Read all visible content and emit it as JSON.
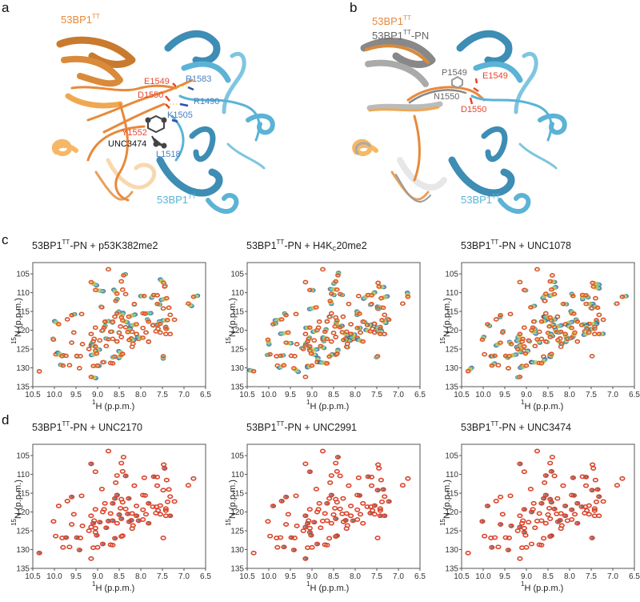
{
  "panels": {
    "a": {
      "letter": "a",
      "labels": {
        "orange_protein": "53BP1",
        "orange_sup": "TT",
        "blue_protein": "53BP1",
        "blue_sup": "TT",
        "E1549": "E1549",
        "D1550": "D1550",
        "Y1552": "Y1552",
        "R1583": "R1583",
        "R1490": "R1490",
        "K1505": "K1505",
        "L1518": "L1518",
        "ligand": "UNC3474"
      }
    },
    "b": {
      "letter": "b",
      "labels": {
        "orange_protein": "53BP1",
        "orange_sup": "TT",
        "gray_protein": "53BP1",
        "gray_sup": "TT",
        "gray_suffix": "-PN",
        "blue_protein": "53BP1",
        "blue_sup": "TT",
        "P1549": "P1549",
        "N1550": "N1550",
        "E1549": "E1549",
        "D1550": "D1550"
      }
    },
    "c": {
      "letter": "c"
    },
    "d": {
      "letter": "d"
    }
  },
  "colors": {
    "orange": "#e8893a",
    "light_orange": "#f5b867",
    "blue": "#5bb3d6",
    "dark_blue": "#3d8db5",
    "label_red": "#e8452f",
    "label_blue": "#4a7fc1",
    "gray": "#8a8a8a",
    "peak_red": "#e0502e",
    "peak_dark": "#3a4a5a"
  },
  "axis": {
    "x_label_sup": "1",
    "x_label": "H (p.p.m.)",
    "y_label_sup": "15",
    "y_label": "N (p.p.m.)",
    "x_ticks": [
      "10.5",
      "10.0",
      "9.5",
      "9.0",
      "8.5",
      "8.0",
      "7.5",
      "7.0",
      "6.5"
    ],
    "y_ticks": [
      "105",
      "110",
      "115",
      "120",
      "125",
      "130",
      "135"
    ]
  },
  "chart_data": [
    {
      "type": "scatter",
      "panel": "c",
      "title_base": "53BP1",
      "title_sup": "TT",
      "title_rest": "-PN + p53K382me2",
      "xlabel": "1H (p.p.m.)",
      "ylabel": "15N (p.p.m.)",
      "xlim": [
        10.5,
        6.5
      ],
      "ylim": [
        135,
        102
      ],
      "titration": "rainbow",
      "grid": false
    },
    {
      "type": "scatter",
      "panel": "c",
      "title_base": "53BP1",
      "title_sup": "TT",
      "title_rest": "-PN + H4K",
      "title_sub": "C",
      "title_end": "20me2",
      "xlabel": "1H (p.p.m.)",
      "ylabel": "15N (p.p.m.)",
      "xlim": [
        10.5,
        6.5
      ],
      "ylim": [
        135,
        102
      ],
      "titration": "rainbow",
      "grid": false
    },
    {
      "type": "scatter",
      "panel": "c",
      "title_base": "53BP1",
      "title_sup": "TT",
      "title_rest": "-PN + UNC1078",
      "xlabel": "1H (p.p.m.)",
      "ylabel": "15N (p.p.m.)",
      "xlim": [
        10.5,
        6.5
      ],
      "ylim": [
        135,
        102
      ],
      "titration": "rainbow",
      "grid": false
    },
    {
      "type": "scatter",
      "panel": "d",
      "title_base": "53BP1",
      "title_sup": "TT",
      "title_rest": "-PN + UNC2170",
      "xlabel": "1H (p.p.m.)",
      "ylabel": "15N (p.p.m.)",
      "xlim": [
        10.5,
        6.5
      ],
      "ylim": [
        135,
        102
      ],
      "titration": "red_gray",
      "grid": false
    },
    {
      "type": "scatter",
      "panel": "d",
      "title_base": "53BP1",
      "title_sup": "TT",
      "title_rest": "-PN + UNC2991",
      "xlabel": "1H (p.p.m.)",
      "ylabel": "15N (p.p.m.)",
      "xlim": [
        10.5,
        6.5
      ],
      "ylim": [
        135,
        102
      ],
      "titration": "red_gray",
      "grid": false
    },
    {
      "type": "scatter",
      "panel": "d",
      "title_base": "53BP1",
      "title_sup": "TT",
      "title_rest": "-PN + UNC3474",
      "xlabel": "1H (p.p.m.)",
      "ylabel": "15N (p.p.m.)",
      "xlim": [
        10.5,
        6.5
      ],
      "ylim": [
        135,
        102
      ],
      "titration": "red_gray",
      "grid": false
    }
  ],
  "peaks": [
    [
      8.75,
      103.8
    ],
    [
      8.4,
      105.4
    ],
    [
      8.45,
      107.0
    ],
    [
      9.15,
      107.2
    ],
    [
      7.47,
      107.4
    ],
    [
      7.45,
      108.4
    ],
    [
      9.05,
      109.3
    ],
    [
      8.42,
      109.2
    ],
    [
      8.35,
      110.4
    ],
    [
      8.55,
      110.3
    ],
    [
      7.92,
      110.9
    ],
    [
      7.7,
      110.6
    ],
    [
      7.62,
      110.7
    ],
    [
      7.4,
      111.5
    ],
    [
      6.78,
      111.1
    ],
    [
      6.9,
      112.9
    ],
    [
      8.58,
      112.2
    ],
    [
      8.15,
      113.0
    ],
    [
      7.62,
      113.0
    ],
    [
      7.35,
      114.0
    ],
    [
      7.48,
      114.2
    ],
    [
      8.9,
      113.9
    ],
    [
      8.55,
      115.5
    ],
    [
      7.95,
      115.5
    ],
    [
      7.9,
      115.6
    ],
    [
      7.32,
      115.9
    ],
    [
      9.6,
      116.0
    ],
    [
      9.37,
      115.7
    ],
    [
      8.6,
      116.4
    ],
    [
      8.45,
      116.6
    ],
    [
      8.28,
      116.4
    ],
    [
      7.82,
      117.7
    ],
    [
      7.22,
      117.2
    ],
    [
      7.38,
      117.3
    ],
    [
      9.7,
      117.1
    ],
    [
      8.83,
      117.7
    ],
    [
      8.65,
      117.7
    ],
    [
      8.42,
      117.4
    ],
    [
      8.1,
      118.4
    ],
    [
      7.64,
      118.6
    ],
    [
      7.55,
      118.3
    ],
    [
      7.72,
      118.6
    ],
    [
      7.42,
      119.1
    ],
    [
      7.6,
      119.6
    ],
    [
      7.42,
      119.6
    ],
    [
      9.9,
      118.4
    ],
    [
      9.05,
      119.3
    ],
    [
      8.85,
      119.3
    ],
    [
      8.47,
      119.0
    ],
    [
      8.35,
      119.2
    ],
    [
      7.95,
      119.4
    ],
    [
      7.65,
      120.3
    ],
    [
      8.88,
      120.0
    ],
    [
      8.7,
      120.4
    ],
    [
      8.5,
      120.7
    ],
    [
      8.3,
      120.5
    ],
    [
      8.2,
      120.4
    ],
    [
      7.55,
      120.6
    ],
    [
      7.42,
      121.0
    ],
    [
      7.32,
      121.0
    ],
    [
      9.55,
      120.6
    ],
    [
      9.15,
      121.0
    ],
    [
      8.75,
      122.4
    ],
    [
      8.65,
      122.3
    ],
    [
      8.45,
      121.8
    ],
    [
      8.1,
      121.0
    ],
    [
      7.88,
      120.6
    ],
    [
      8.22,
      122.2
    ],
    [
      8.27,
      122.6
    ],
    [
      8.05,
      122.3
    ],
    [
      7.95,
      122.0
    ],
    [
      10.02,
      122.5
    ],
    [
      9.08,
      122.3
    ],
    [
      8.95,
      122.7
    ],
    [
      9.1,
      123.0
    ],
    [
      8.55,
      123.0
    ],
    [
      8.18,
      123.6
    ],
    [
      7.82,
      123.0
    ],
    [
      9.6,
      123.3
    ],
    [
      9.35,
      123.7
    ],
    [
      9.15,
      124.0
    ],
    [
      9.05,
      124.3
    ],
    [
      8.8,
      124.2
    ],
    [
      8.2,
      124.4
    ],
    [
      9.2,
      125.0
    ],
    [
      9.05,
      125.4
    ],
    [
      9.02,
      126.2
    ],
    [
      8.45,
      126.5
    ],
    [
      8.42,
      126.3
    ],
    [
      9.97,
      126.4
    ],
    [
      9.48,
      126.8
    ],
    [
      9.4,
      126.9
    ],
    [
      7.48,
      126.9
    ],
    [
      8.6,
      127.0
    ],
    [
      9.82,
      126.9
    ],
    [
      9.73,
      126.8
    ],
    [
      8.88,
      128.5
    ],
    [
      8.7,
      128.7
    ],
    [
      8.65,
      128.8
    ],
    [
      9.8,
      129.4
    ],
    [
      9.65,
      129.3
    ],
    [
      9.1,
      129.5
    ],
    [
      9.0,
      129.4
    ],
    [
      9.42,
      130.1
    ],
    [
      9.15,
      132.4
    ],
    [
      10.35,
      130.9
    ]
  ]
}
